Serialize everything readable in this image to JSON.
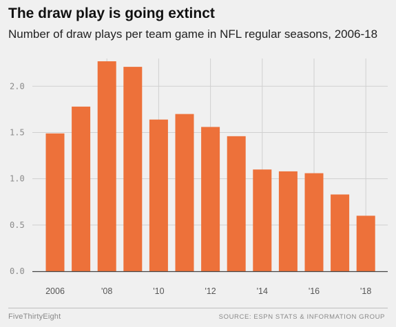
{
  "title": "The draw play is going extinct",
  "subtitle": "Number of draw plays per team game in NFL regular seasons, 2006-18",
  "footer": {
    "brand": "FiveThirtyEight",
    "source": "SOURCE: ESPN STATS & INFORMATION GROUP"
  },
  "colors": {
    "bar": "#ed713a",
    "background": "#f0f0f0",
    "grid": "#d0d0d0",
    "baseline": "#444444"
  },
  "chart_data": {
    "type": "bar",
    "title": "The draw play is going extinct",
    "subtitle": "Number of draw plays per team game in NFL regular seasons, 2006-18",
    "xlabel": "",
    "ylabel": "",
    "categories": [
      "2006",
      "2007",
      "2008",
      "2009",
      "2010",
      "2011",
      "2012",
      "2013",
      "2014",
      "2015",
      "2016",
      "2017",
      "2018"
    ],
    "values": [
      1.49,
      1.78,
      2.27,
      2.21,
      1.64,
      1.7,
      1.56,
      1.46,
      1.1,
      1.08,
      1.06,
      0.83,
      0.6
    ],
    "ylim": [
      0,
      2.3
    ],
    "yticks": [
      0.0,
      0.5,
      1.0,
      1.5,
      2.0
    ],
    "ytick_labels": [
      "0.0",
      "0.5",
      "1.0",
      "1.5",
      "2.0"
    ],
    "xtick_labels": [
      "2006",
      "",
      "'08",
      "",
      "'10",
      "",
      "'12",
      "",
      "'14",
      "",
      "'16",
      "",
      "'18"
    ],
    "grid": true,
    "legend": "none"
  }
}
